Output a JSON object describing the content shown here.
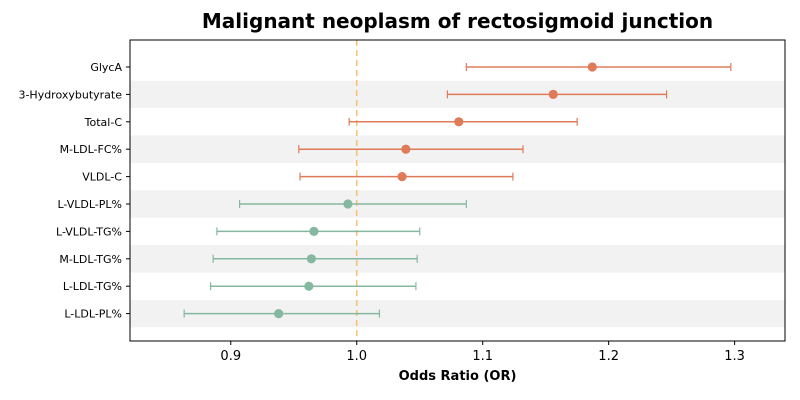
{
  "chart_data": {
    "type": "forest",
    "title": "Malignant neoplasm of rectosigmoid junction",
    "xlabel": "Odds Ratio (OR)",
    "ylabel": "",
    "xlim": [
      0.82,
      1.34
    ],
    "xticks": [
      0.9,
      1.0,
      1.1,
      1.2,
      1.3
    ],
    "xtick_labels": [
      "0.9",
      "1.0",
      "1.1",
      "1.2",
      "1.3"
    ],
    "reference_line": 1.0,
    "grid": false,
    "colors": {
      "positive": "#e07b5a",
      "negative": "#85b8a0",
      "reference": "#f5c27a",
      "band": "#f2f2f2"
    },
    "rows": [
      {
        "label": "GlycA",
        "or": 1.187,
        "lower": 1.087,
        "upper": 1.297
      },
      {
        "label": "3-Hydroxybutyrate",
        "or": 1.156,
        "lower": 1.072,
        "upper": 1.246
      },
      {
        "label": "Total-C",
        "or": 1.081,
        "lower": 0.994,
        "upper": 1.175
      },
      {
        "label": "M-LDL-FC%",
        "or": 1.039,
        "lower": 0.954,
        "upper": 1.132
      },
      {
        "label": "VLDL-C",
        "or": 1.036,
        "lower": 0.955,
        "upper": 1.124
      },
      {
        "label": "L-VLDL-PL%",
        "or": 0.993,
        "lower": 0.907,
        "upper": 1.087
      },
      {
        "label": "L-VLDL-TG%",
        "or": 0.966,
        "lower": 0.889,
        "upper": 1.05
      },
      {
        "label": "M-LDL-TG%",
        "or": 0.964,
        "lower": 0.886,
        "upper": 1.048
      },
      {
        "label": "L-LDL-TG%",
        "or": 0.962,
        "lower": 0.884,
        "upper": 1.047
      },
      {
        "label": "L-LDL-PL%",
        "or": 0.938,
        "lower": 0.863,
        "upper": 1.018
      }
    ]
  }
}
